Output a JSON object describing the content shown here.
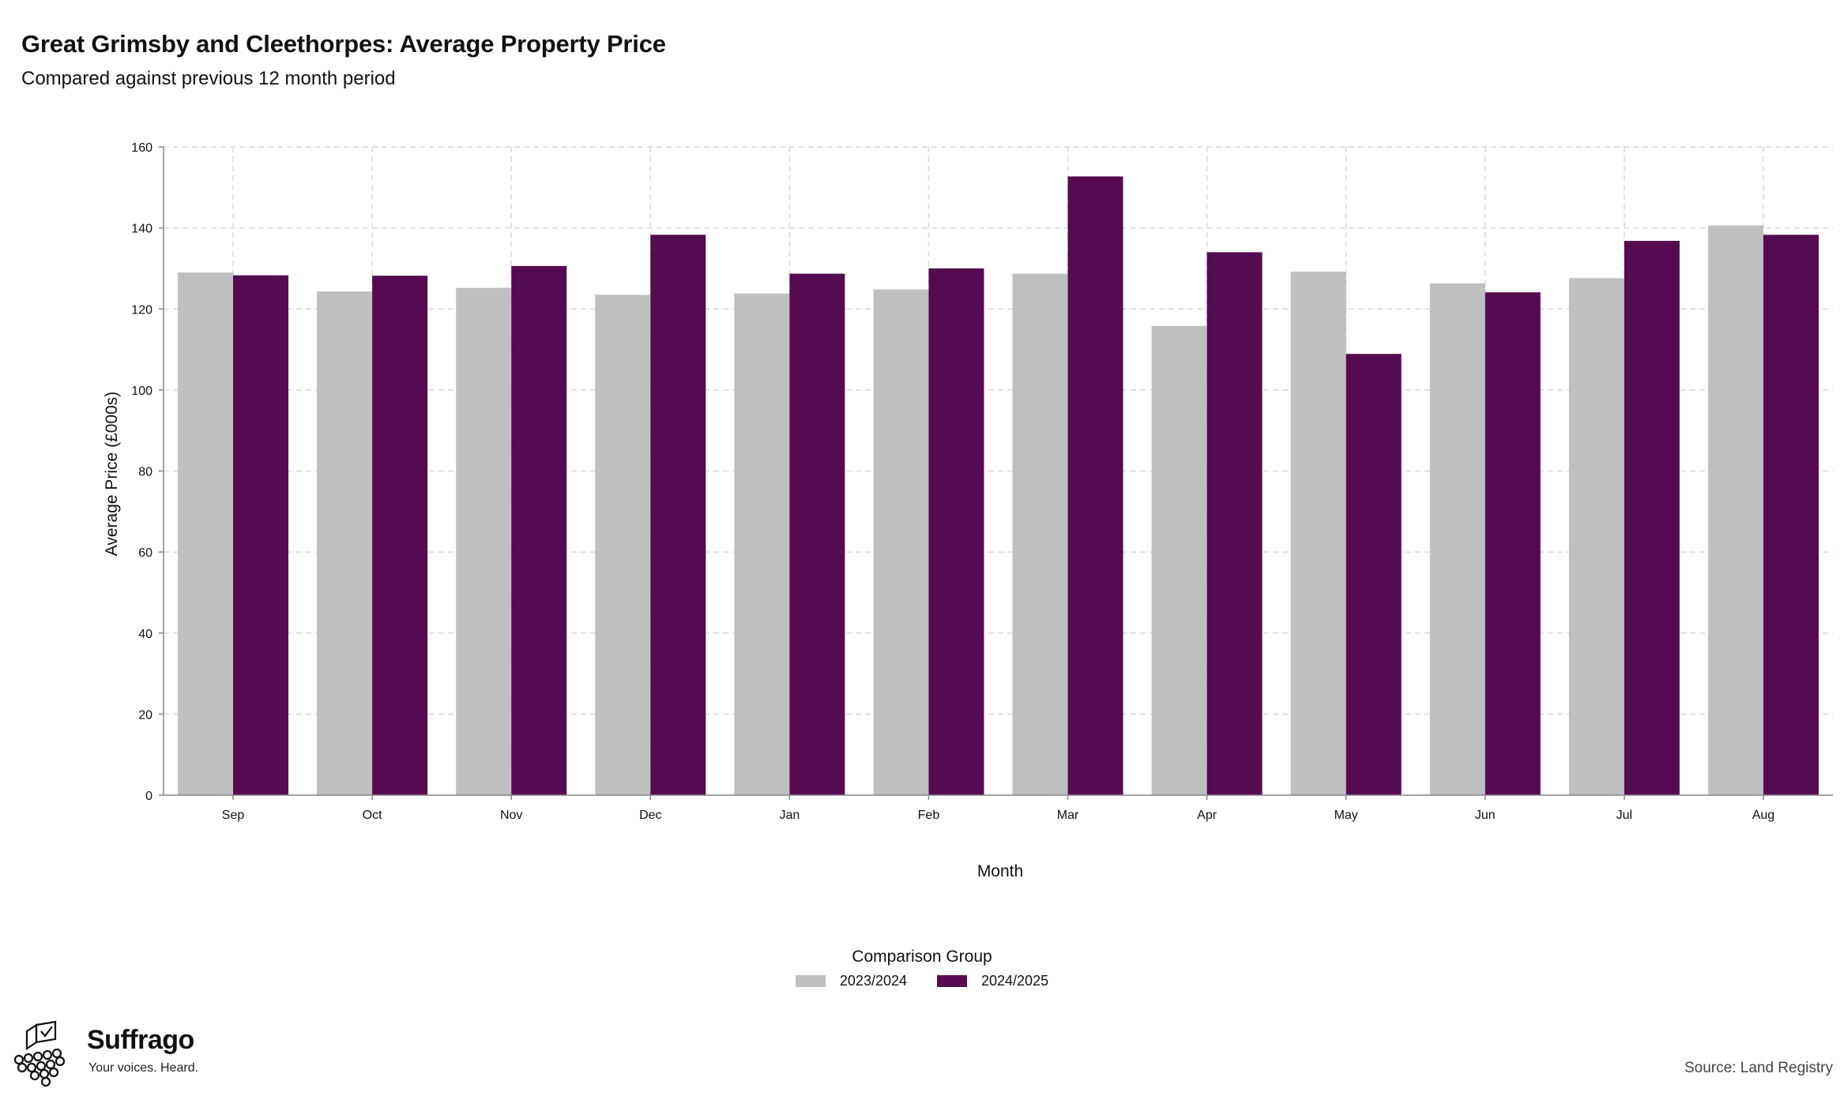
{
  "header": {
    "title": "Great Grimsby and Cleethorpes: Average Property Price",
    "subtitle": "Compared against previous 12 month period"
  },
  "chart_data": {
    "type": "bar",
    "title": "Great Grimsby and Cleethorpes: Average Property Price",
    "subtitle": "Compared against previous 12 month period",
    "xlabel": "Month",
    "ylabel": "Average Price (£000s)",
    "ylim": [
      0,
      160
    ],
    "yticks": [
      0,
      20,
      40,
      60,
      80,
      100,
      120,
      140,
      160
    ],
    "grid": true,
    "legend_title": "Comparison Group",
    "legend_position": "bottom",
    "categories": [
      "Sep",
      "Oct",
      "Nov",
      "Dec",
      "Jan",
      "Feb",
      "Mar",
      "Apr",
      "May",
      "Jun",
      "Jul",
      "Aug"
    ],
    "series": [
      {
        "name": "2023/2024",
        "color": "#bfbfbf",
        "values": [
          129,
          124.3,
          125.2,
          123.5,
          123.8,
          124.8,
          128.7,
          115.8,
          129.2,
          126.3,
          127.6,
          140.6
        ]
      },
      {
        "name": "2024/2025",
        "color": "#550b51",
        "values": [
          128.3,
          128.2,
          130.6,
          138.3,
          128.7,
          130,
          152.7,
          134,
          108.9,
          124.1,
          136.8,
          138.3
        ]
      }
    ]
  },
  "footer": {
    "brand_name": "Suffrago",
    "brand_tagline": "Your voices. Heard.",
    "brand_icon": "ballot-box-crowd-icon",
    "source": "Source: Land Registry"
  }
}
